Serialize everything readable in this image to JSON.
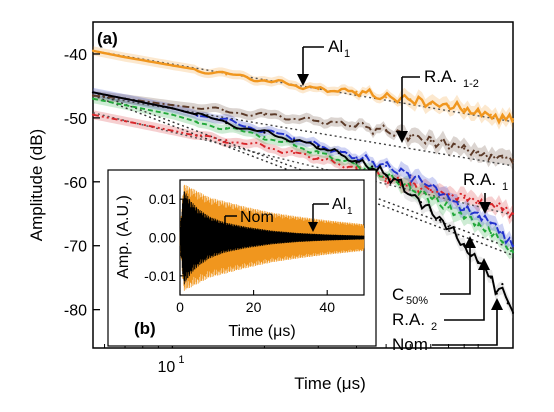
{
  "chart_data": [
    {
      "panel": "(a)",
      "type": "line",
      "xlabel": "Time (μs)",
      "ylabel": "Amplitude (dB)",
      "x_scale": "log",
      "xlim": [
        5.5,
        130
      ],
      "ylim": [
        -86,
        -35
      ],
      "x_ticks": [
        {
          "value": 10,
          "base": "10",
          "exp": "1"
        }
      ],
      "y_ticks": [
        -40,
        -50,
        -60,
        -70,
        -80
      ],
      "grid": false,
      "series": [
        {
          "key": "al1",
          "color": "#f0961e",
          "fit_color": "#555555",
          "x": [
            5.5,
            7,
            10,
            15,
            20,
            30,
            40,
            50,
            60,
            70,
            80,
            90,
            100,
            110,
            120,
            130
          ],
          "y": [
            -39.5,
            -40.5,
            -41.8,
            -43.2,
            -44.1,
            -45.5,
            -45.9,
            -46.8,
            -47.1,
            -47.8,
            -48.1,
            -48.6,
            -49.0,
            -49.5,
            -50.0,
            -50.2
          ],
          "fit": {
            "x": [
              5.5,
              130
            ],
            "y": [
              -39.5,
              -50.6
            ]
          }
        },
        {
          "key": "ra12",
          "color": "#5c3a28",
          "fit_color": "#444444",
          "x": [
            5.5,
            7,
            10,
            15,
            20,
            30,
            40,
            50,
            60,
            70,
            80,
            90,
            100,
            110,
            120,
            130
          ],
          "y": [
            -46.5,
            -47.0,
            -48.0,
            -49.0,
            -49.5,
            -50.5,
            -51.2,
            -52.0,
            -52.8,
            -53.6,
            -54.2,
            -54.8,
            -55.3,
            -55.8,
            -56.2,
            -56.5
          ],
          "fit": {
            "x": [
              5.5,
              130
            ],
            "y": [
              -46.5,
              -57.5
            ]
          }
        },
        {
          "key": "ra1",
          "color": "#d8262a",
          "fit_color": "#555555",
          "x": [
            5.5,
            7,
            10,
            12,
            15,
            20,
            25,
            30,
            40,
            50,
            60,
            70,
            80,
            90,
            100,
            110,
            120,
            130
          ],
          "y": [
            -49.5,
            -50.5,
            -52.0,
            -52.8,
            -53.5,
            -54.5,
            -55.5,
            -56.3,
            -58.0,
            -59.5,
            -60.5,
            -61.3,
            -62.0,
            -62.5,
            -63.0,
            -63.5,
            -64.2,
            -65.0
          ],
          "fit": {
            "x": [
              5.5,
              130
            ],
            "y": [
              -49.2,
              -65.2
            ]
          }
        },
        {
          "key": "c50",
          "color": "#22a83a",
          "fit_color": "#333333",
          "x": [
            5.5,
            7,
            10,
            12,
            15,
            20,
            25,
            30,
            40,
            50,
            60,
            70,
            80,
            90,
            100,
            110,
            120,
            130
          ],
          "y": [
            -47.0,
            -48.0,
            -49.5,
            -50.6,
            -51.6,
            -53.0,
            -54.3,
            -55.5,
            -57.3,
            -59.0,
            -61.0,
            -62.5,
            -64.0,
            -65.5,
            -66.8,
            -68.0,
            -69.5,
            -71.0
          ],
          "fit": {
            "x": [
              5.5,
              130
            ],
            "y": [
              -46.5,
              -71.5
            ]
          }
        },
        {
          "key": "ra2",
          "color": "#2232cc",
          "fit_color": "#333333",
          "x": [
            5.5,
            7,
            10,
            12,
            15,
            20,
            25,
            30,
            40,
            50,
            60,
            70,
            80,
            90,
            100,
            110,
            120,
            130
          ],
          "y": [
            -46.0,
            -47.0,
            -48.5,
            -49.5,
            -50.5,
            -52.0,
            -53.2,
            -54.3,
            -56.2,
            -57.5,
            -59.0,
            -60.6,
            -62.5,
            -64.2,
            -65.5,
            -66.5,
            -68.0,
            -70.0
          ],
          "fit": {
            "x": [
              5.5,
              130
            ],
            "y": [
              -46.0,
              -70.5
            ]
          }
        },
        {
          "key": "nom",
          "color": "#000000",
          "x": [
            5.5,
            7,
            10,
            12,
            15,
            20,
            25,
            30,
            35,
            40,
            45,
            50,
            55,
            60,
            65,
            70,
            75,
            80,
            85,
            90,
            95,
            100,
            110,
            115,
            120,
            125,
            130
          ],
          "y": [
            -46.0,
            -47.0,
            -48.5,
            -49.5,
            -50.8,
            -52.3,
            -53.5,
            -54.5,
            -55.5,
            -57.0,
            -57.6,
            -59.0,
            -60.0,
            -62.0,
            -63.2,
            -64.5,
            -66.0,
            -67.0,
            -68.5,
            -70.0,
            -71.5,
            -72.5,
            -75.0,
            -77.5,
            -76.0,
            -79.0,
            -80.5
          ]
        }
      ],
      "annotations": [
        {
          "key": "al1",
          "label": "Al",
          "sub": "1"
        },
        {
          "key": "ra12",
          "label": "R.A.",
          "sub": "1-2"
        },
        {
          "key": "ra1",
          "label": "R.A.",
          "sub": "1"
        },
        {
          "key": "c50",
          "label": "C",
          "sub": "50%"
        },
        {
          "key": "ra2",
          "label": "R.A.",
          "sub": "2"
        },
        {
          "key": "nom",
          "label": "Nom",
          "sub": ""
        }
      ]
    },
    {
      "panel": "(b)",
      "type": "line",
      "xlabel": "Time (μs)",
      "ylabel": "Amp. (A.U.)",
      "xlim": [
        0,
        50
      ],
      "ylim": [
        -0.015,
        0.015
      ],
      "x_ticks": [
        0,
        20,
        40
      ],
      "y_ticks": [
        "0.01",
        "0.00",
        "-0.01"
      ],
      "grid": false,
      "series": [
        {
          "key": "al1",
          "color": "#f0961e",
          "envelope_t": [
            0,
            1,
            3,
            5,
            8,
            12,
            18,
            25,
            32,
            40,
            50
          ],
          "envelope_amp": [
            0.002,
            0.014,
            0.013,
            0.012,
            0.0105,
            0.0095,
            0.008,
            0.0065,
            0.0055,
            0.0045,
            0.0035
          ]
        },
        {
          "key": "nom",
          "color": "#000000",
          "envelope_t": [
            0,
            1,
            3,
            5,
            8,
            12,
            18,
            25,
            32,
            40,
            50
          ],
          "envelope_amp": [
            0.002,
            0.0125,
            0.0095,
            0.0075,
            0.0055,
            0.004,
            0.0028,
            0.0018,
            0.0012,
            0.0008,
            0.0005
          ]
        }
      ],
      "annotations": [
        {
          "key": "nom",
          "label": "Nom",
          "sub": ""
        },
        {
          "key": "al1",
          "label": "Al",
          "sub": "1"
        }
      ]
    }
  ]
}
